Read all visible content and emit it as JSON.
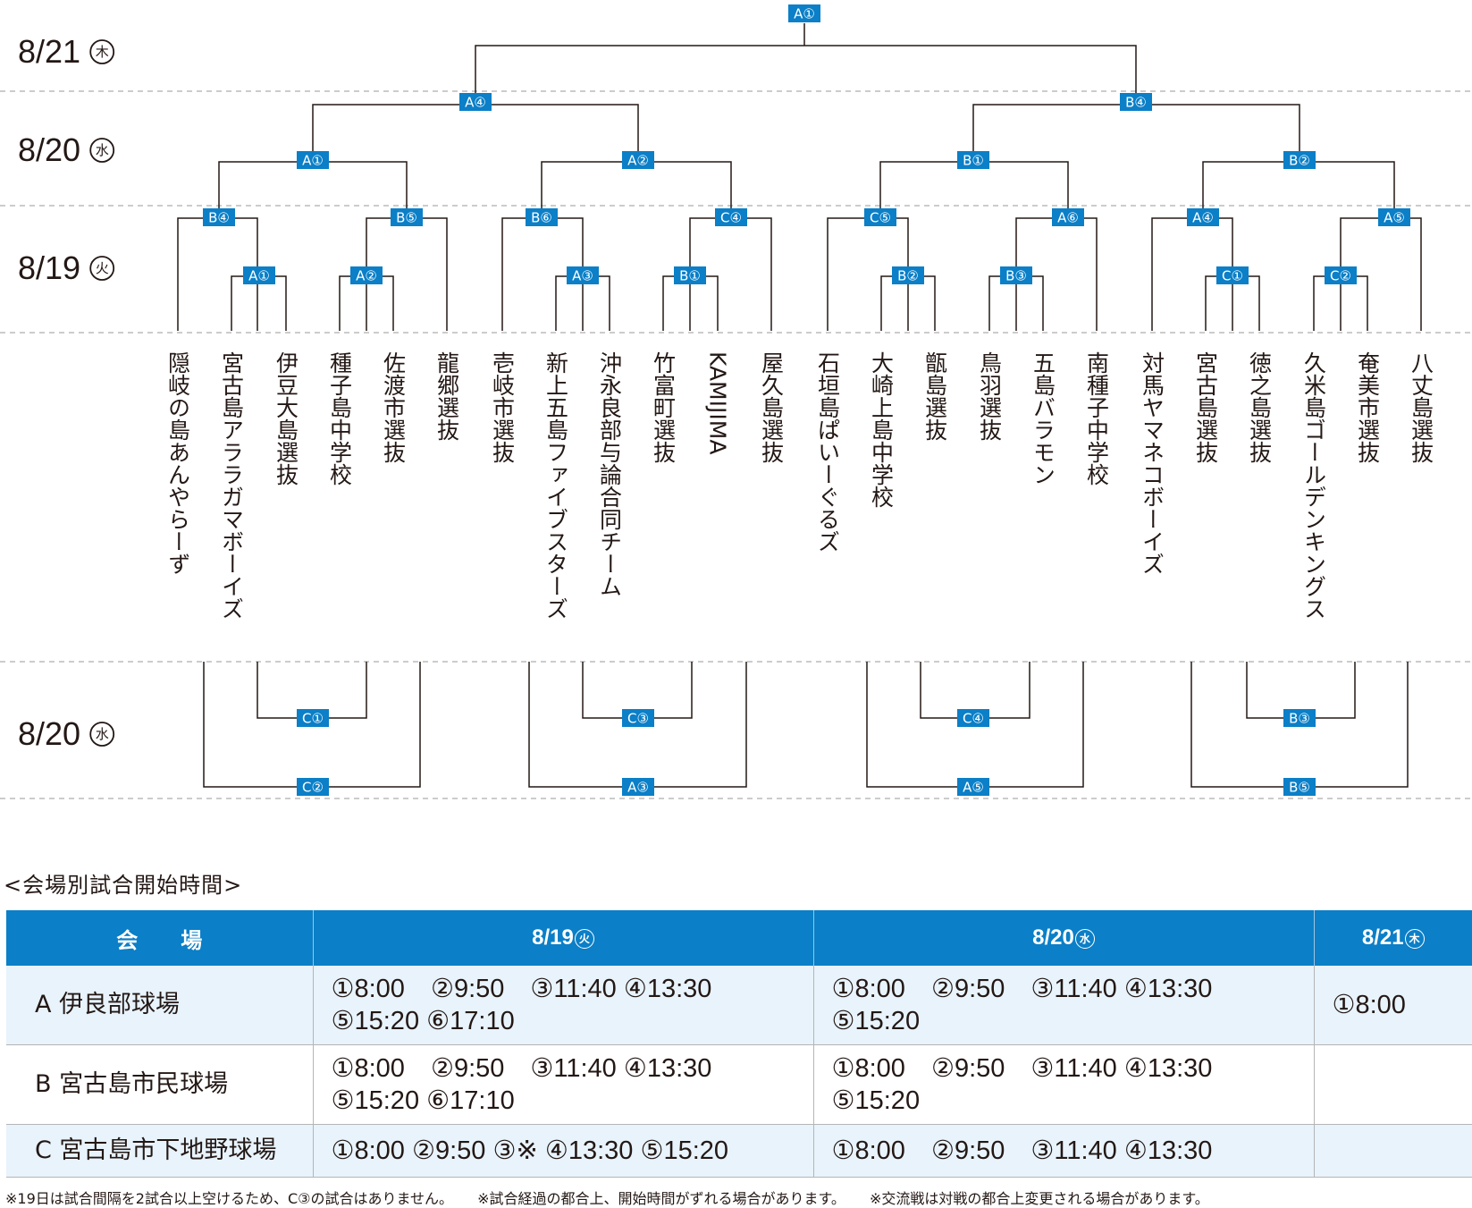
{
  "dates": {
    "d821": {
      "label": "8/21",
      "dow": "木"
    },
    "d820a": {
      "label": "8/20",
      "dow": "水"
    },
    "d819": {
      "label": "8/19",
      "dow": "火"
    },
    "d820b": {
      "label": "8/20",
      "dow": "水"
    }
  },
  "bracket": {
    "final": "A①",
    "semi_left": "A④",
    "semi_right": "B④",
    "quarters": [
      "A①",
      "A②",
      "B①",
      "B②"
    ],
    "round2": [
      "B④",
      "B⑤",
      "B⑥",
      "C④",
      "C⑤",
      "A⑥",
      "A④",
      "A⑤"
    ],
    "round1": [
      "A①",
      "A②",
      "A③",
      "B①",
      "B②",
      "B③",
      "C①",
      "C②"
    ],
    "consolation_inner": [
      "C①",
      "C③",
      "C④",
      "B③"
    ],
    "consolation_outer": [
      "C②",
      "A③",
      "A⑤",
      "B⑤"
    ]
  },
  "teams": [
    "隠岐の島あんやらーず",
    "宮古島アララガマボーイズ",
    "伊豆大島選抜",
    "種子島中学校",
    "佐渡市選抜",
    "龍郷選抜",
    "壱岐市選抜",
    "新上五島ファイブスターズ",
    "沖永良部与論合同チーム",
    "竹富町選抜",
    "KAMIJIMA",
    "屋久島選抜",
    "石垣島ぱいーぐるズ",
    "大崎上島中学校",
    "甑島選抜",
    "鳥羽選抜",
    "五島バラモン",
    "南種子中学校",
    "対馬ヤマネコボーイズ",
    "宮古島選抜",
    "徳之島選抜",
    "久米島ゴールデンキングス",
    "奄美市選抜",
    "八丈島選抜"
  ],
  "schedule": {
    "title": "<会場別試合開始時間>",
    "headers": {
      "venue": "会　　場",
      "d1": "8/19",
      "d1_dow": "火",
      "d2": "8/20",
      "d2_dow": "水",
      "d3": "8/21",
      "d3_dow": "木"
    },
    "rows": [
      {
        "venue": "A 伊良部球場",
        "d1_l1": "①8:00　②9:50　③11:40 ④13:30",
        "d1_l2": "⑤15:20 ⑥17:10",
        "d2_l1": "①8:00　②9:50　③11:40 ④13:30",
        "d2_l2": "⑤15:20",
        "d3": "①8:00"
      },
      {
        "venue": "B 宮古島市民球場",
        "d1_l1": "①8:00　②9:50　③11:40 ④13:30",
        "d1_l2": "⑤15:20 ⑥17:10",
        "d2_l1": "①8:00　②9:50　③11:40 ④13:30",
        "d2_l2": "⑤15:20",
        "d3": ""
      },
      {
        "venue": "C 宮古島市下地野球場",
        "d1_l1": "①8:00 ②9:50 ③※ ④13:30 ⑤15:20",
        "d2_l1": "①8:00　②9:50　③11:40 ④13:30",
        "d3": ""
      }
    ]
  },
  "footnotes": [
    "※19日は試合間隔を2試合以上空けるため、C③の試合はありません。",
    "※試合経過の都合上、開始時間がずれる場合があります。",
    "※交流戦は対戦の都合上変更される場合があります。"
  ],
  "colors": {
    "accent": "#0b7fc7",
    "row_tint": "#e8f3fb"
  }
}
